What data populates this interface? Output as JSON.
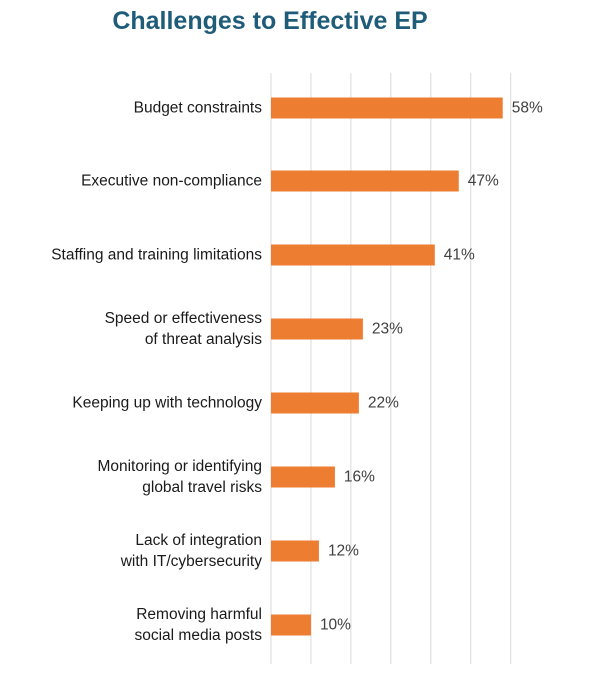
{
  "chart_data": {
    "type": "bar",
    "orientation": "horizontal",
    "title": "Challenges to Effective EP",
    "xlabel": "",
    "ylabel": "",
    "xlim": [
      0,
      65
    ],
    "grid": true,
    "bar_color": "#ed7d31",
    "title_color": "#1f5c7a",
    "categories": [
      [
        "Budget constraints"
      ],
      [
        "Executive non-compliance"
      ],
      [
        "Staffing and training limitations"
      ],
      [
        "Speed or effectiveness",
        "of threat analysis"
      ],
      [
        "Keeping up with technology"
      ],
      [
        "Monitoring or identifying",
        "global travel risks"
      ],
      [
        "Lack of integration",
        "with IT/cybersecurity"
      ],
      [
        "Removing harmful",
        "social media posts"
      ]
    ],
    "values": [
      58,
      47,
      41,
      23,
      22,
      16,
      12,
      10
    ],
    "value_labels": [
      "58%",
      "47%",
      "41%",
      "23%",
      "22%",
      "16%",
      "12%",
      "10%"
    ]
  }
}
